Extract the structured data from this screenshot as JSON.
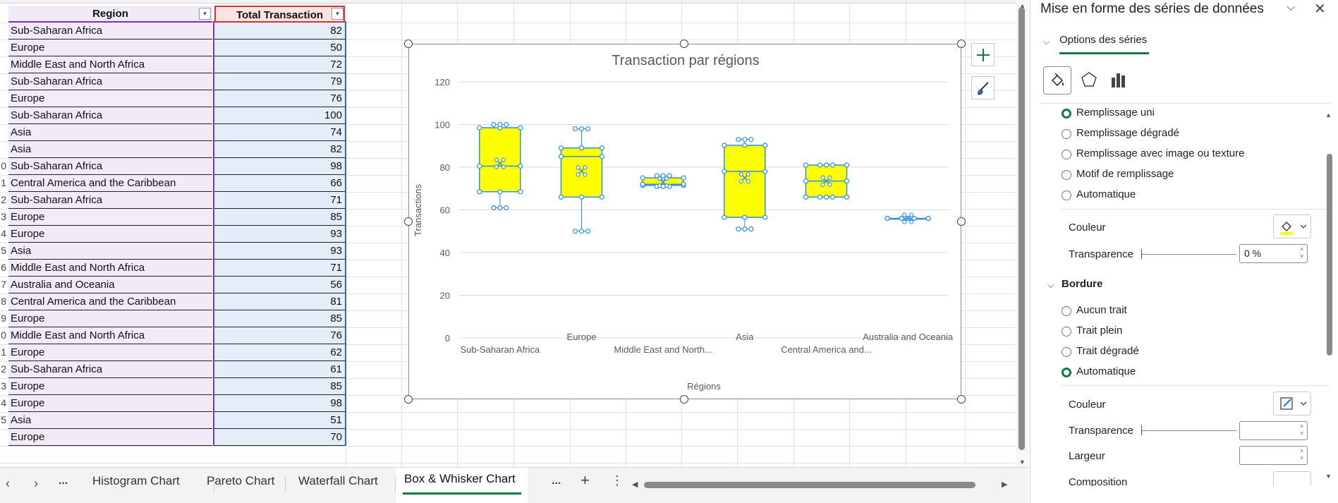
{
  "sheet": {
    "headers": {
      "region": "Region",
      "total": "Total Transaction"
    },
    "row_numbers": [
      "",
      "",
      "",
      "",
      "",
      "",
      "",
      "",
      "0",
      "1",
      "2",
      "3",
      "4",
      "5",
      "6",
      "7",
      "8",
      "9",
      "0",
      "1",
      "2",
      "3",
      "4",
      "5"
    ],
    "rows": [
      {
        "region": "Sub-Saharan Africa",
        "total": "82"
      },
      {
        "region": "Europe",
        "total": "50"
      },
      {
        "region": "Middle East and North Africa",
        "total": "72"
      },
      {
        "region": "Sub-Saharan Africa",
        "total": "79"
      },
      {
        "region": "Europe",
        "total": "76"
      },
      {
        "region": "Sub-Saharan Africa",
        "total": "100"
      },
      {
        "region": "Asia",
        "total": "74"
      },
      {
        "region": "Asia",
        "total": "82"
      },
      {
        "region": "Sub-Saharan Africa",
        "total": "98"
      },
      {
        "region": "Central America and the Caribbean",
        "total": "66"
      },
      {
        "region": "Sub-Saharan Africa",
        "total": "71"
      },
      {
        "region": "Europe",
        "total": "85"
      },
      {
        "region": "Europe",
        "total": "93"
      },
      {
        "region": "Asia",
        "total": "93"
      },
      {
        "region": "Middle East and North Africa",
        "total": "71"
      },
      {
        "region": "Australia and Oceania",
        "total": "56"
      },
      {
        "region": "Central America and the Caribbean",
        "total": "81"
      },
      {
        "region": "Europe",
        "total": "85"
      },
      {
        "region": "Middle East and North Africa",
        "total": "76"
      },
      {
        "region": "Europe",
        "total": "62"
      },
      {
        "region": "Sub-Saharan Africa",
        "total": "61"
      },
      {
        "region": "Europe",
        "total": "85"
      },
      {
        "region": "Europe",
        "total": "98"
      },
      {
        "region": "Asia",
        "total": "51"
      },
      {
        "region": "Europe",
        "total": "70"
      }
    ]
  },
  "chart_data": {
    "type": "box",
    "title": "Transaction par régions",
    "xlabel": "Régions",
    "ylabel": "Transactions",
    "ylim": [
      0,
      120
    ],
    "yticks": [
      "0",
      "20",
      "40",
      "60",
      "80",
      "100",
      "120"
    ],
    "grid": true,
    "box_color": "#ffff00",
    "point_color": "#2e8fe6",
    "categories": [
      "Sub-Saharan Africa",
      "Europe",
      "Middle East and North...",
      "Asia",
      "Central America and...",
      "Australia and Oceania"
    ],
    "boxes": [
      {
        "min": 61,
        "q1": 68.5,
        "median": 80.5,
        "q3": 98.5,
        "max": 100,
        "mean": 81.8
      },
      {
        "min": 50,
        "q1": 66,
        "median": 85,
        "q3": 89,
        "max": 98,
        "mean": 78.2
      },
      {
        "min": 71,
        "q1": 71.5,
        "median": 72,
        "q3": 75,
        "max": 76,
        "mean": 73
      },
      {
        "min": 51,
        "q1": 56.5,
        "median": 78,
        "q3": 90.25,
        "max": 93,
        "mean": 75
      },
      {
        "min": 66,
        "q1": 66,
        "median": 73.5,
        "q3": 81,
        "max": 81,
        "mean": 73.5
      },
      {
        "min": 56,
        "q1": 56,
        "median": 56,
        "q3": 56,
        "max": 56,
        "mean": 56
      }
    ]
  },
  "tabs": {
    "items": [
      "Histogram Chart",
      "Pareto Chart",
      "Waterfall Chart",
      "Box & Whisker Chart"
    ],
    "active": "Box & Whisker Chart",
    "more": "...",
    "add": "+",
    "menu": "⋮"
  },
  "pane": {
    "title": "Mise en forme des séries de données",
    "section_tab": "Options des séries",
    "fill_options": [
      "Remplissage uni",
      "Remplissage dégradé",
      "Remplissage avec image ou texture",
      "Motif de remplissage",
      "Automatique"
    ],
    "fill_selected": "Remplissage uni",
    "color_label": "Couleur",
    "transparency_label": "Transparence",
    "transparency_value": "0 %",
    "border_heading": "Bordure",
    "border_options": [
      "Aucun trait",
      "Trait plein",
      "Trait dégradé",
      "Automatique"
    ],
    "border_selected": "Automatique",
    "border_color_label": "Couleur",
    "border_transparency_label": "Transparence",
    "width_label": "Largeur",
    "composition_label": "Composition",
    "accent": "#107c41"
  }
}
